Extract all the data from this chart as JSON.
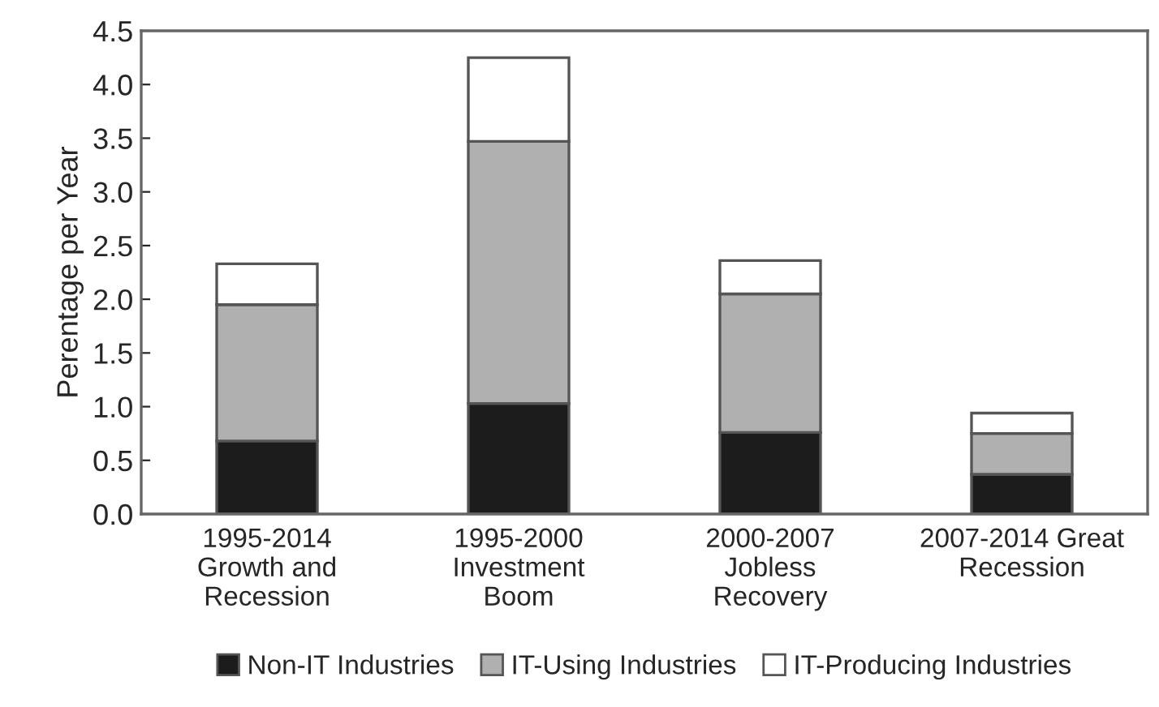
{
  "chart_data": {
    "type": "bar",
    "stacked": true,
    "ylabel": "Perentage per Year",
    "categories": [
      "1995-2014\nGrowth and\nRecession",
      "1995-2000\nInvestment\nBoom",
      "2000-2007\nJobless\nRecovery",
      "2007-2014 Great\nRecession"
    ],
    "series": [
      {
        "name": "Non-IT Industries",
        "color": "#1c1c1c",
        "values": [
          0.68,
          1.03,
          0.76,
          0.37
        ]
      },
      {
        "name": "IT-Using Industries",
        "color": "#b0b0b0",
        "values": [
          1.27,
          2.44,
          1.29,
          0.38
        ]
      },
      {
        "name": "IT-Producing Industries",
        "color": "#ffffff",
        "values": [
          0.38,
          0.78,
          0.31,
          0.19
        ]
      }
    ],
    "ylim": [
      0,
      4.5
    ],
    "yticks": [
      {
        "value": 0,
        "label": "0.0"
      },
      {
        "value": 0.5,
        "label": "0.5"
      },
      {
        "value": 1,
        "label": "1.0"
      },
      {
        "value": 1.5,
        "label": "1.5"
      },
      {
        "value": 2,
        "label": "2.0"
      },
      {
        "value": 2.5,
        "label": "2.5"
      },
      {
        "value": 3,
        "label": "3.0"
      },
      {
        "value": 3.5,
        "label": "3.5"
      },
      {
        "value": 4,
        "label": "4.0"
      },
      {
        "value": 4.5,
        "label": "4.5"
      }
    ],
    "grid": false,
    "legend": "bottom"
  }
}
